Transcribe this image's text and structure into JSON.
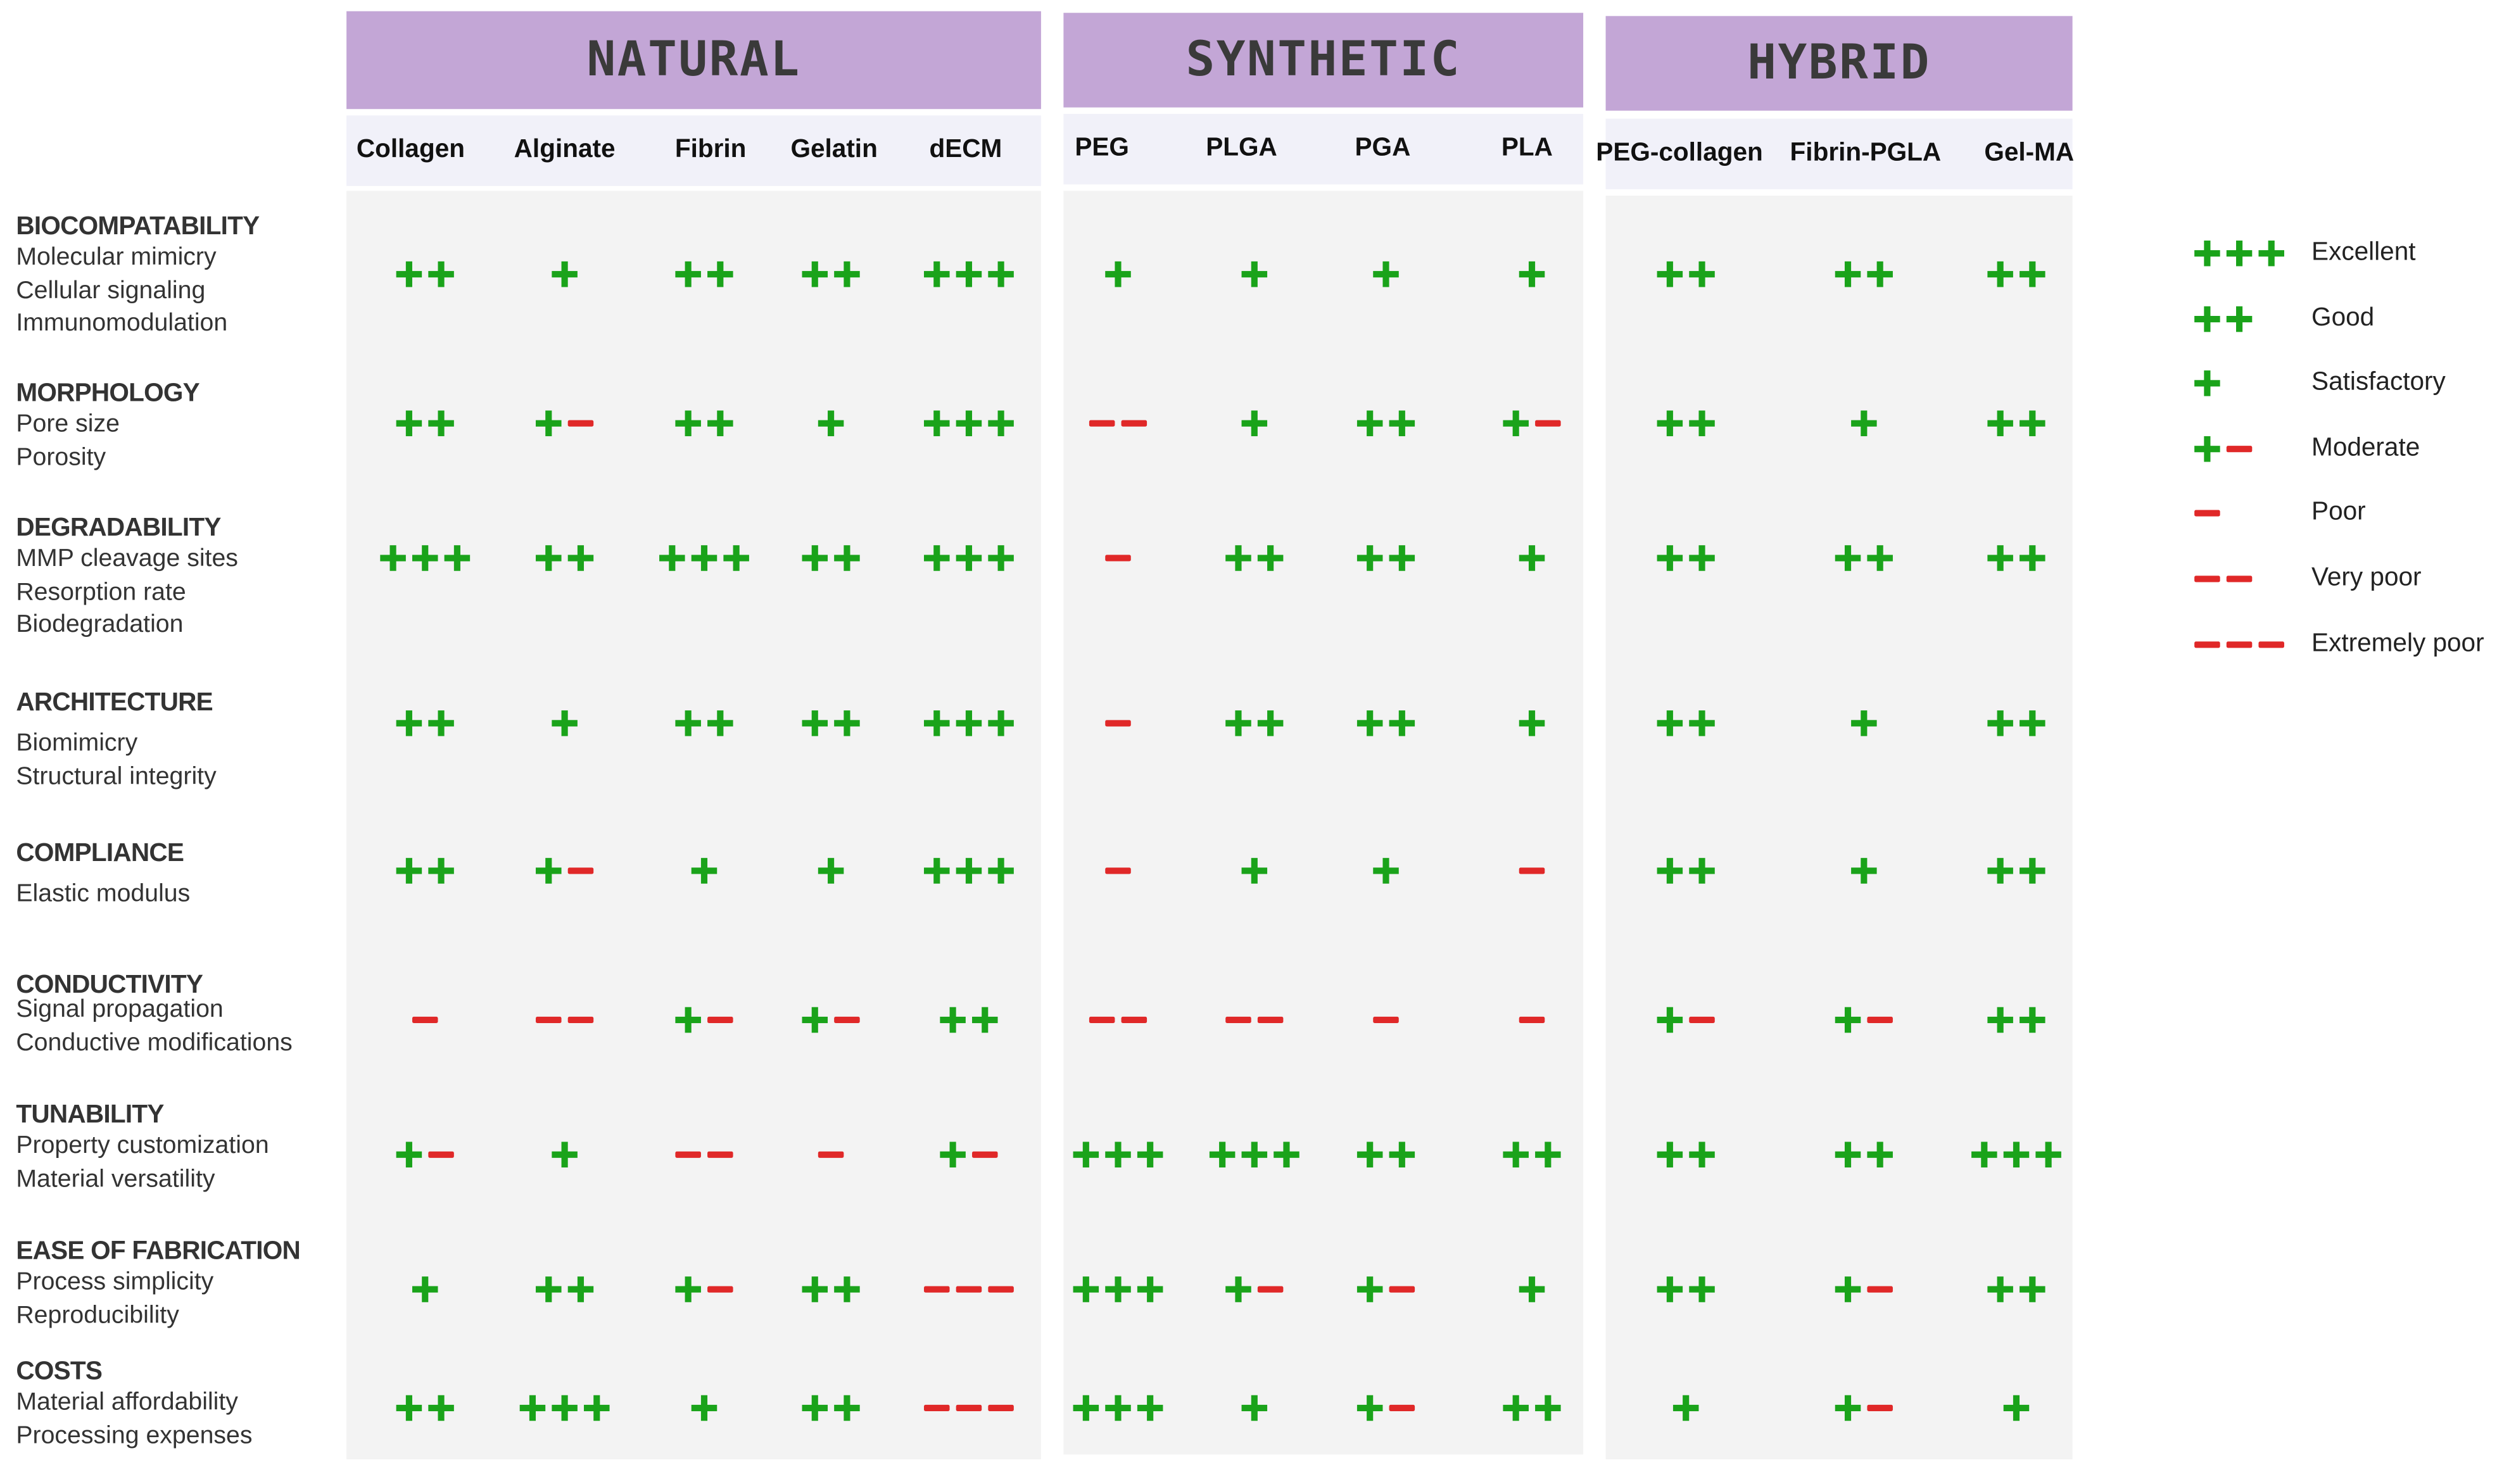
{
  "groups": [
    {
      "id": "natural",
      "title": "NATURAL",
      "materials": [
        "Collagen",
        "Alginate",
        "Fibrin",
        "Gelatin",
        "dECM"
      ]
    },
    {
      "id": "synthetic",
      "title": "SYNTHETIC",
      "materials": [
        "PEG",
        "PLGA",
        "PGA",
        "PLA"
      ]
    },
    {
      "id": "hybrid",
      "title": "HYBRID",
      "materials": [
        "PEG-collagen",
        "Fibrin-PGLA",
        "Gel-MA"
      ]
    }
  ],
  "criteria": [
    {
      "title": "BIOCOMPATABILITY",
      "subs": [
        "Molecular mimicry",
        "Cellular signaling",
        "Immunomodulation"
      ]
    },
    {
      "title": "MORPHOLOGY",
      "subs": [
        "Pore size",
        "Porosity"
      ]
    },
    {
      "title": "DEGRADABILITY",
      "subs": [
        "MMP cleavage sites",
        "Resorption rate",
        "Biodegradation"
      ]
    },
    {
      "title": "ARCHITECTURE",
      "subs": [
        "Biomimicry",
        "Structural integrity"
      ]
    },
    {
      "title": "COMPLIANCE",
      "subs": [
        "Elastic modulus"
      ]
    },
    {
      "title": "CONDUCTIVITY",
      "subs": [
        "Signal propagation",
        "Conductive modifications"
      ]
    },
    {
      "title": "TUNABILITY",
      "subs": [
        "Property customization",
        "Material versatility"
      ]
    },
    {
      "title": "EASE OF FABRICATION",
      "subs": [
        "Process simplicity",
        "Reproducibility"
      ]
    },
    {
      "title": "COSTS",
      "subs": [
        "Material affordability",
        "Processing expenses"
      ]
    }
  ],
  "ratings": [
    [
      "++",
      "+",
      "++",
      "++",
      "+++",
      "+",
      "+",
      "+",
      "+",
      "++",
      "++",
      "++"
    ],
    [
      "++",
      "+-",
      "++",
      "+",
      "+++",
      "--",
      "+",
      "++",
      "+-",
      "++",
      "+",
      "++"
    ],
    [
      "+++",
      "++",
      "+++",
      "++",
      "+++",
      "-",
      "++",
      "++",
      "+",
      "++",
      "++",
      "++"
    ],
    [
      "++",
      "+",
      "++",
      "++",
      "+++",
      "-",
      "++",
      "++",
      "+",
      "++",
      "+",
      "++"
    ],
    [
      "++",
      "+-",
      "+",
      "+",
      "+++",
      "-",
      "+",
      "+",
      "-",
      "++",
      "+",
      "++"
    ],
    [
      "-",
      "--",
      "+-",
      "+-",
      "++",
      "--",
      "--",
      "-",
      "-",
      "+-",
      "+-",
      "++"
    ],
    [
      "+-",
      "+",
      "--",
      "-",
      "+-",
      "+++",
      "+++",
      "++",
      "++",
      "++",
      "++",
      "+++"
    ],
    [
      "+",
      "++",
      "+-",
      "++",
      "---",
      "+++",
      "+-",
      "+-",
      "+",
      "++",
      "+-",
      "++"
    ],
    [
      "++",
      "+++",
      "+",
      "++",
      "---",
      "+++",
      "+",
      "+-",
      "++",
      "+",
      "+-",
      "+"
    ]
  ],
  "legend": [
    {
      "symbol": "+++",
      "label": "Excellent"
    },
    {
      "symbol": "++",
      "label": "Good"
    },
    {
      "symbol": "+",
      "label": "Satisfactory"
    },
    {
      "symbol": "+-",
      "label": "Moderate"
    },
    {
      "symbol": "-",
      "label": "Poor"
    },
    {
      "symbol": "--",
      "label": "Very poor"
    },
    {
      "symbol": "---",
      "label": "Extremely poor"
    }
  ],
  "colors": {
    "header": "#c3a6d6",
    "positive": "#1aa31a",
    "negative": "#e02828",
    "panel": "#f3f3f3"
  }
}
